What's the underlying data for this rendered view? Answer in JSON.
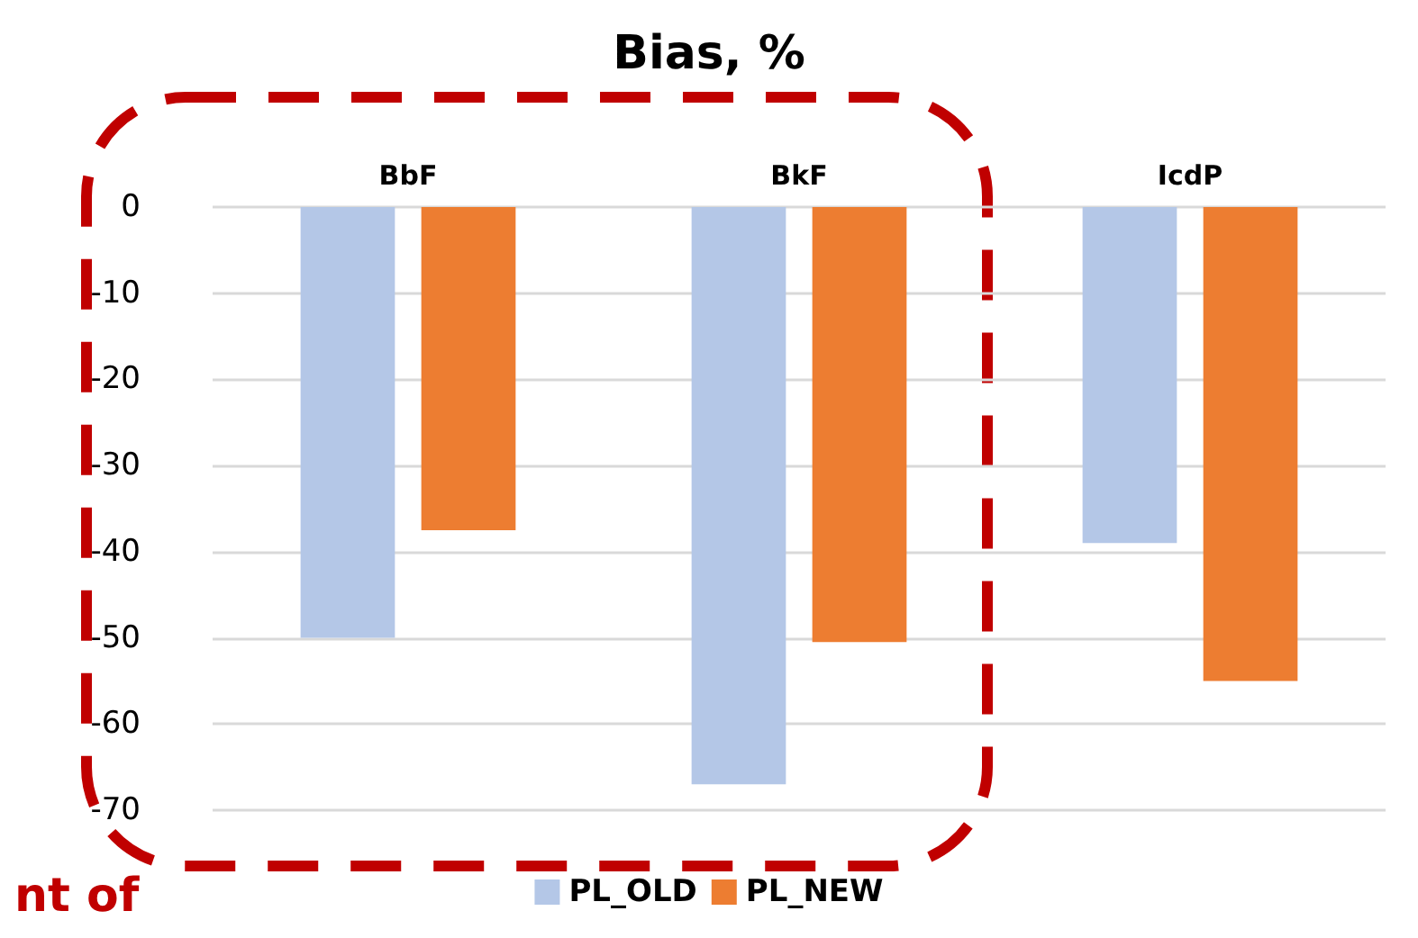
{
  "chart_data": {
    "type": "bar",
    "title": "Bias, %",
    "categories": [
      "BbF",
      "BkF",
      "IcdP"
    ],
    "series": [
      {
        "name": "PL_OLD",
        "color": "#b4c7e7",
        "values": [
          -50,
          -67,
          -39
        ]
      },
      {
        "name": "PL_NEW",
        "color": "#ed7d31",
        "values": [
          -37.5,
          -50.5,
          -55
        ]
      }
    ],
    "ylim": [
      -70,
      0
    ],
    "yticks": [
      -70,
      -60,
      -50,
      -40,
      -30,
      -20,
      -10,
      0
    ],
    "grid": "y",
    "legend": "bottom",
    "annotations": [
      "nt of"
    ]
  }
}
